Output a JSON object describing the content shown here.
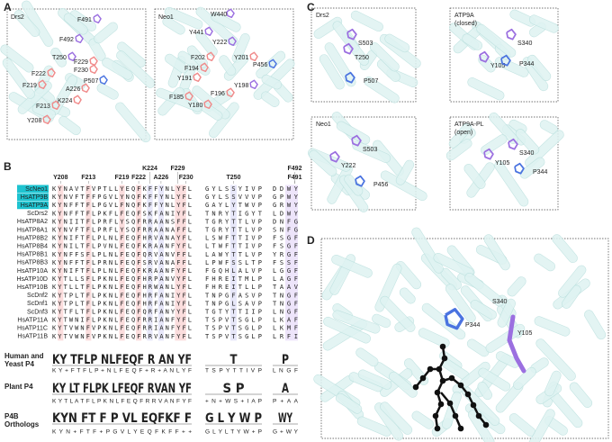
{
  "panel_labels": [
    "A",
    "B",
    "C",
    "D"
  ],
  "panel_a": [
    {
      "title": "Drs2",
      "residues": [
        "F491",
        "F492",
        "T250",
        "F229",
        "F230",
        "F222",
        "F219",
        "P507",
        "A226",
        "K224",
        "F213",
        "Y208"
      ]
    },
    {
      "title": "Neo1",
      "residues": [
        "W440",
        "Y441",
        "Y222",
        "F202",
        "Y201",
        "P456",
        "F194",
        "Y191",
        "Y198",
        "F196",
        "F185",
        "Y180"
      ]
    }
  ],
  "panel_b": {
    "headers": [
      "K224",
      "F229",
      "F492",
      "Y208",
      "F213",
      "F219",
      "F222",
      "A226",
      "F230",
      "T250",
      "F491"
    ],
    "names": [
      "ScNeo1",
      "HsATP9B",
      "HsATP9A",
      "ScDrs2",
      "HsATP8A2",
      "HsATP8A1",
      "HsATP8B2",
      "HsATP8B4",
      "HsATP8B1",
      "HsATP8B3",
      "HsATP10A",
      "HsATP10D",
      "HsATP10B",
      "ScDnf2",
      "ScDnf1",
      "ScDnf3",
      "HsATP11A",
      "HsATP11C",
      "HsATP11B"
    ],
    "sequences": [
      [
        "KYNAVTFVPTLLYEQFKFFYNLYFL",
        "GYLSSYIVP",
        "DDWY"
      ],
      [
        "KYNVFTFFPGVLYNQFKFFYNLYFL",
        "GYLSSVVVP",
        "GPWY"
      ],
      [
        "KYNFFTFLPGVLFNQFKFFYNLYFL",
        "GAYLYTWVP",
        "GRWY"
      ],
      [
        "KYNFFTFLPKFLFEQFSKFANIYFL",
        "TNRYTIGYT",
        "LDWY"
      ],
      [
        "KYNIITFLPRFLYSQFRRAANSFFL",
        "TGRYTTLVP",
        "DNFG"
      ],
      [
        "KYNVFTFLPRFLYSQFRRAANAFFL",
        "TGRYTTLVP",
        "SNFG"
      ],
      [
        "KYNIFTFLPLNLFEQFHRVANAYFL",
        "LSWFTTIVP",
        "FSGF"
      ],
      [
        "KYNILTFLPVNLFEQFKRAANFYFL",
        "LTWFTTIVP",
        "FSGF"
      ],
      [
        "KYNFFSFLPLNLFEQFQRVANVFFL",
        "LAWYTTLVP",
        "YRGF"
      ],
      [
        "KYNFFTFLPRNLFEQFSRVANAFFL",
        "LPWFSSLTP",
        "FSSF"
      ],
      [
        "KYNIFTFLPLNLFEQFKRAANFYFL",
        "FGQHLALVP",
        "LGGF"
      ],
      [
        "KYTLLSFLPKNLFEQFHRPANVYFL",
        "FHREITMLP",
        "LAGF"
      ],
      [
        "KYTLLTFLPKNLFEQFHRWANLYFL",
        "FHREITLLP",
        "TAAV"
      ],
      [
        "KYTPLTFLPKNLFEQFHRFANIYFL",
        "TNPGFASVP",
        "TNGF"
      ],
      [
        "KYTPLTFLPKNLFEQFHRFANIYFL",
        "TNPGLSAVP",
        "TNGF"
      ],
      [
        "KYTFLTFLPKNLFEQFQRFANYYFL",
        "TGTYTTIIP",
        "LNGF"
      ],
      [
        "KYTWNIFLPKNLFEQFRRIANFYFL",
        "TSPVTSGLP",
        "LKAF"
      ],
      [
        "KYTVWNFVPKNLFEQFRRIANFYFL",
        "TSPVTSGLP",
        "LKMF"
      ],
      [
        "KYTVWNFVPKNLFEQFRRVANFYFL",
        "TSPVTSGLP",
        "LRFI"
      ]
    ],
    "logos": [
      {
        "label": "Human and Yeast P4",
        "logo": [
          "KY TFLP NLFEQF R AN YF",
          "T",
          "P"
        ],
        "consensus": [
          "K Y + F T F L P + N L F E Q F + R + A N L Y F",
          "T S P Y T T I V P",
          "L N G F"
        ]
      },
      {
        "label": "Plant P4",
        "logo": [
          "KY LT FLPK LFEQF RVAN YF",
          "S P",
          "A"
        ],
        "consensus": [
          "K Y T L A T F L P K N L F E Q F R R V A N F Y F",
          "+ N + W S + I A P",
          "P + A A"
        ]
      },
      {
        "label": "P4B Orthologs",
        "logo": [
          "KYN FT F P VL EQFKF F",
          "G L Y W P",
          "WY"
        ],
        "consensus": [
          "K Y N + F T F + P G V L Y E Q F K F F + +",
          "G L Y L T Y W + P",
          "G + W Y"
        ]
      }
    ]
  },
  "panel_c": [
    {
      "title": [
        "Drs2"
      ],
      "residues": [
        "S503",
        "T250",
        "P507"
      ]
    },
    {
      "title": [
        "ATP9A",
        "(closed)"
      ],
      "residues": [
        "S340",
        "Y105",
        "P344"
      ]
    },
    {
      "title": [
        "Neo1"
      ],
      "residues": [
        "S503",
        "Y222",
        "P456"
      ]
    },
    {
      "title": [
        "ATP9A-PL",
        "(open)"
      ],
      "residues": [
        "S340",
        "Y105",
        "P344"
      ]
    }
  ],
  "panel_d": {
    "residues": [
      "S340",
      "P344",
      "Y105"
    ]
  }
}
